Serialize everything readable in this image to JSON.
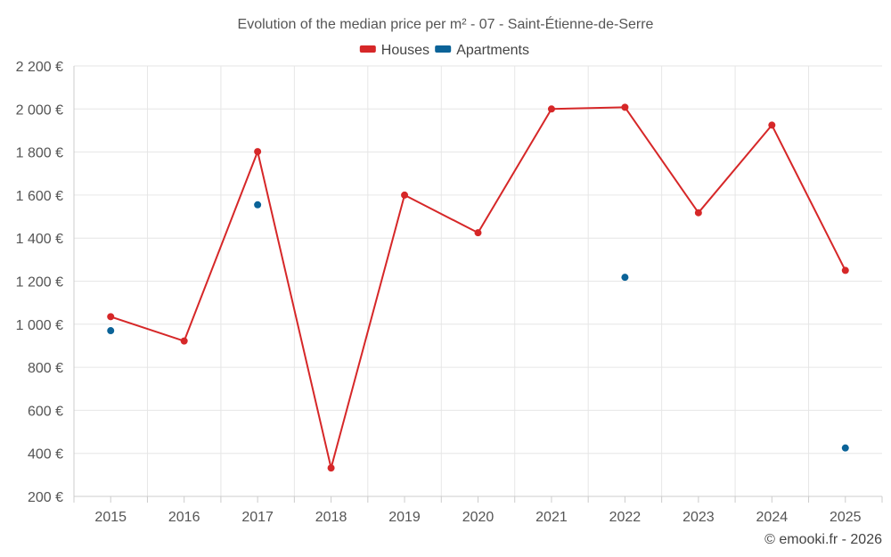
{
  "chart_data": {
    "type": "line",
    "title": "Evolution of the median price per m² - 07 - Saint-Étienne-de-Serre",
    "categories": [
      "2015",
      "2016",
      "2017",
      "2018",
      "2019",
      "2020",
      "2021",
      "2022",
      "2023",
      "2024",
      "2025"
    ],
    "ylim": [
      200,
      2200
    ],
    "yticks": [
      200,
      400,
      600,
      800,
      1000,
      1200,
      1400,
      1600,
      1800,
      2000,
      2200
    ],
    "ytick_labels": [
      "200 €",
      "400 €",
      "600 €",
      "800 €",
      "1 000 €",
      "1 200 €",
      "1 400 €",
      "1 600 €",
      "1 800 €",
      "2 000 €",
      "2 200 €"
    ],
    "grid": true,
    "legend_position": "top-center",
    "series": [
      {
        "name": "Houses",
        "color": "#d62728",
        "line": true,
        "values": [
          1035,
          922,
          1802,
          332,
          1600,
          1425,
          2000,
          2008,
          1518,
          1925,
          1250
        ]
      },
      {
        "name": "Apartments",
        "color": "#0b6398",
        "line": false,
        "values": [
          970,
          null,
          1555,
          null,
          null,
          null,
          null,
          1218,
          null,
          null,
          425
        ]
      }
    ]
  },
  "credit": "© emooki.fr - 2026"
}
